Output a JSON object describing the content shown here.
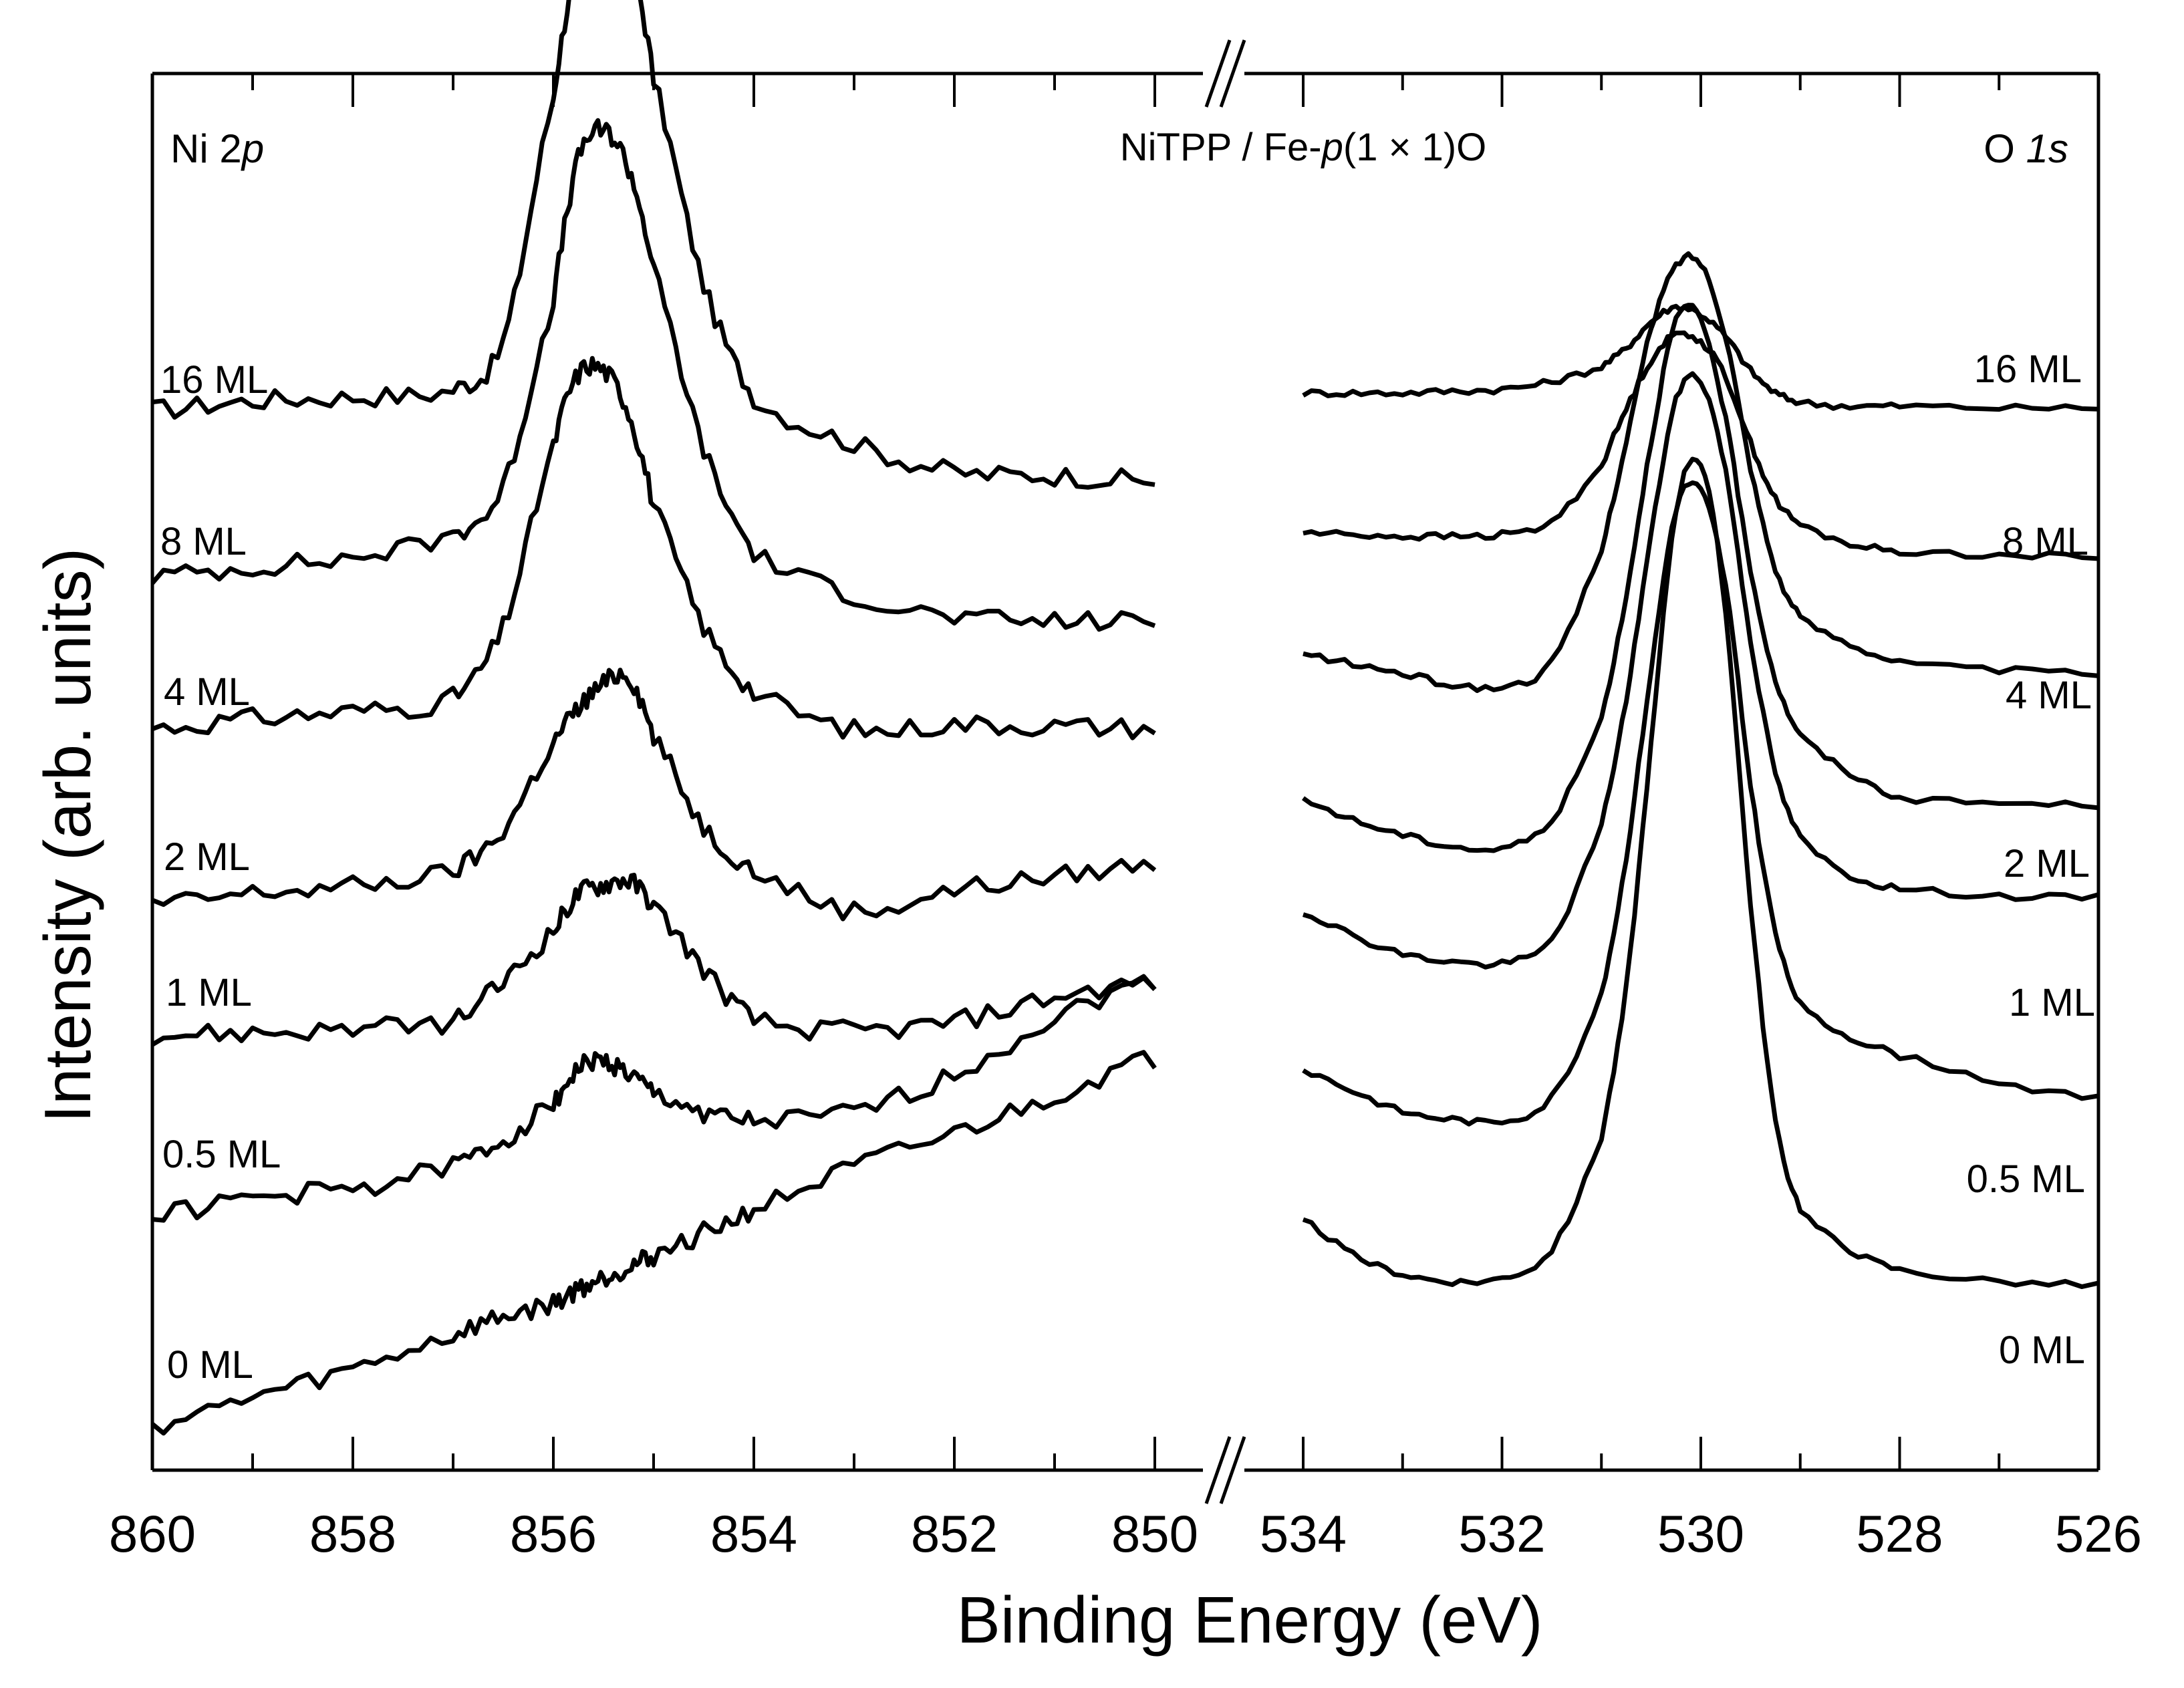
{
  "chart_data": {
    "type": "line",
    "title": "NiTPP / Fe-p(1 × 1)O",
    "title_parts": {
      "pre": "NiTPP / Fe-",
      "italic": "p",
      "post": "(1 × 1)O"
    },
    "xlabel": "Binding Energy (eV)",
    "ylabel": "Intensity (arb. units)",
    "grid": false,
    "legend": "none",
    "color": "#000000",
    "x_axis_break": "//",
    "panels": [
      {
        "name": "Ni 2p",
        "name_parts": {
          "pre": "Ni 2",
          "italic": "p"
        },
        "xlim": [
          860,
          850
        ],
        "xticks": [
          860,
          858,
          856,
          854,
          852,
          850
        ],
        "x": [
          860,
          859,
          858,
          857,
          856.5,
          856,
          855.75,
          855.5,
          855.25,
          855,
          854.5,
          854,
          853,
          852,
          851,
          850
        ],
        "series": [
          {
            "name": "16 ML",
            "values": [
              0.3,
              0.8,
              1.0,
              1.4,
              4.0,
              17.0,
              24.5,
              27.0,
              25.0,
              18.0,
              7.0,
              1.0,
              -1.5,
              -3.0,
              -3.2,
              -3.5
            ]
          },
          {
            "name": "8 ML",
            "values": [
              0.2,
              0.7,
              1.2,
              2.4,
              5.0,
              15.0,
              22.5,
              24.0,
              22.0,
              16.5,
              7.0,
              1.5,
              -0.8,
              -2.0,
              -2.2,
              -2.2
            ]
          },
          {
            "name": "4 ML",
            "values": [
              0.1,
              0.6,
              1.0,
              1.7,
              5.5,
              15.0,
              19.0,
              19.2,
              17.0,
              12.0,
              5.5,
              2.0,
              0.0,
              0.3,
              0.2,
              0.1
            ]
          },
          {
            "name": "2 ML",
            "values": [
              0.0,
              0.6,
              1.0,
              1.8,
              4.0,
              8.5,
              10.5,
              11.8,
              12.2,
              9.0,
              4.2,
              1.8,
              -0.3,
              0.8,
              1.5,
              2.2
            ]
          },
          {
            "name": "1 ML",
            "values": [
              0.0,
              0.1,
              0.3,
              0.7,
              2.8,
              5.5,
              7.5,
              8.0,
              8.2,
              6.8,
              3.5,
              0.8,
              0.2,
              0.7,
              2.0,
              2.8
            ]
          },
          {
            "name": "0.5 ML",
            "values": [
              0.0,
              0.9,
              1.4,
              2.6,
              4.0,
              6.0,
              7.8,
              8.2,
              7.5,
              6.5,
              5.5,
              5.0,
              5.5,
              7.5,
              10.5,
              12.5
            ]
          },
          {
            "name": "0 ML",
            "values": [
              0.0,
              1.5,
              3.0,
              4.8,
              5.8,
              6.5,
              7.3,
              7.9,
              8.5,
              9.1,
              10.3,
              11.6,
              13.8,
              15.6,
              17.6,
              19.6
            ]
          }
        ]
      },
      {
        "name": "O 1s",
        "name_parts": {
          "pre": "O ",
          "italic": "1s"
        },
        "xlim": [
          534,
          526
        ],
        "xticks": [
          534,
          532,
          530,
          528,
          526
        ],
        "x": [
          534,
          533.5,
          533,
          532.5,
          532,
          531.5,
          531,
          530.75,
          530.5,
          530.25,
          530,
          529.75,
          529.5,
          529.25,
          529,
          528.5,
          528,
          527,
          526
        ],
        "series": [
          {
            "name": "16 ML",
            "values": [
              0.0,
              0.0,
              0.0,
              0.1,
              0.2,
              0.6,
              1.4,
              2.4,
              3.8,
              4.6,
              4.2,
              3.0,
              1.2,
              0.0,
              -0.5,
              -0.7,
              -0.7,
              -0.8,
              -0.8
            ]
          },
          {
            "name": "8 ML",
            "values": [
              0.0,
              -0.1,
              -0.2,
              -0.2,
              -0.1,
              0.6,
              3.6,
              6.6,
              9.2,
              10.6,
              10.2,
              8.3,
              4.8,
              1.8,
              0.4,
              -0.6,
              -1.0,
              -1.2,
              -1.3
            ]
          },
          {
            "name": "4 ML",
            "values": [
              0.0,
              -0.5,
              -1.0,
              -1.6,
              -1.7,
              -0.4,
              5.5,
              11.4,
              17.4,
              20.8,
              20.9,
              17.0,
              10.0,
              4.6,
              2.0,
              0.6,
              -0.4,
              -0.8,
              -1.0
            ]
          },
          {
            "name": "2 ML",
            "values": [
              0.0,
              -1.0,
              -1.8,
              -2.4,
              -2.5,
              -1.0,
              4.4,
              11.0,
              19.2,
              25.7,
              25.7,
              20.4,
              12.4,
              6.5,
              3.5,
              1.5,
              0.2,
              -0.1,
              -0.2
            ]
          },
          {
            "name": "1 ML",
            "values": [
              0.0,
              -1.2,
              -2.2,
              -2.6,
              -2.7,
              -1.4,
              4.6,
              11.4,
              20.2,
              27.4,
              28.4,
              23.6,
              14.6,
              7.5,
              4.0,
              2.0,
              1.3,
              0.9,
              0.8
            ]
          },
          {
            "name": "0.5 ML",
            "values": [
              0.0,
              -1.1,
              -2.2,
              -2.6,
              -2.7,
              -1.4,
              4.0,
              11.4,
              21.4,
              30.0,
              31.0,
              25.9,
              15.3,
              7.4,
              3.5,
              1.8,
              0.8,
              -0.6,
              -1.5
            ]
          },
          {
            "name": "0 ML",
            "values": [
              0.0,
              -1.8,
              -2.8,
              -3.2,
              -3.0,
              -1.5,
              4.5,
              12.5,
              25.5,
              38.0,
              40.5,
              32.5,
              17.0,
              5.4,
              0.7,
              -1.5,
              -2.6,
              -3.2,
              -3.4
            ]
          }
        ]
      }
    ]
  }
}
